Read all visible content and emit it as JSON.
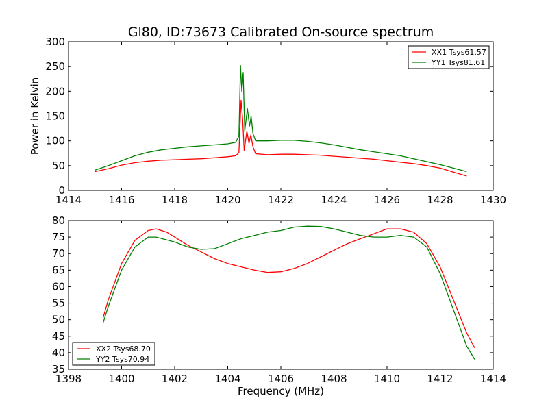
{
  "figure": {
    "title": "Gl80, ID:73673 Calibrated On-source spectrum",
    "xlabel": "Frequency (MHz)"
  },
  "chart_data": [
    {
      "type": "line",
      "title": "Gl80, ID:73673 Calibrated On-source spectrum",
      "xlabel": "",
      "ylabel": "Power in Kelvin",
      "xlim": [
        1414,
        1430
      ],
      "ylim": [
        0,
        300
      ],
      "xticks": [
        1414,
        1416,
        1418,
        1420,
        1422,
        1424,
        1426,
        1428,
        1430
      ],
      "yticks": [
        0,
        50,
        100,
        150,
        200,
        250,
        300
      ],
      "grid": false,
      "legend": "top-right",
      "series": [
        {
          "name": "XX1 Tsys61.57",
          "color": "#ff0000",
          "points": [
            [
              1415.0,
              38
            ],
            [
              1415.5,
              44
            ],
            [
              1416.0,
              51
            ],
            [
              1416.5,
              56
            ],
            [
              1417.0,
              59
            ],
            [
              1417.5,
              61
            ],
            [
              1418.0,
              62
            ],
            [
              1418.5,
              63
            ],
            [
              1419.0,
              64
            ],
            [
              1419.5,
              66
            ],
            [
              1420.0,
              68
            ],
            [
              1420.3,
              70
            ],
            [
              1420.42,
              76
            ],
            [
              1420.5,
              182
            ],
            [
              1420.56,
              145
            ],
            [
              1420.62,
              80
            ],
            [
              1420.72,
              120
            ],
            [
              1420.8,
              95
            ],
            [
              1420.87,
              112
            ],
            [
              1420.95,
              88
            ],
            [
              1421.05,
              74
            ],
            [
              1421.5,
              72
            ],
            [
              1422.0,
              73
            ],
            [
              1422.5,
              73
            ],
            [
              1423.0,
              72
            ],
            [
              1423.5,
              71
            ],
            [
              1424.0,
              69
            ],
            [
              1424.5,
              67
            ],
            [
              1425.0,
              65
            ],
            [
              1425.5,
              63
            ],
            [
              1426.0,
              60
            ],
            [
              1426.5,
              57
            ],
            [
              1427.0,
              54
            ],
            [
              1427.5,
              50
            ],
            [
              1428.0,
              45
            ],
            [
              1428.5,
              37
            ],
            [
              1429.0,
              29
            ]
          ]
        },
        {
          "name": "YY1 Tsys81.61",
          "color": "#008000",
          "points": [
            [
              1415.0,
              41
            ],
            [
              1415.5,
              50
            ],
            [
              1416.0,
              60
            ],
            [
              1416.5,
              70
            ],
            [
              1417.0,
              77
            ],
            [
              1417.5,
              82
            ],
            [
              1418.0,
              85
            ],
            [
              1418.5,
              88
            ],
            [
              1419.0,
              90
            ],
            [
              1419.5,
              92
            ],
            [
              1420.0,
              94
            ],
            [
              1420.3,
              97
            ],
            [
              1420.42,
              110
            ],
            [
              1420.48,
              252
            ],
            [
              1420.53,
              200
            ],
            [
              1420.58,
              238
            ],
            [
              1420.64,
              120
            ],
            [
              1420.74,
              165
            ],
            [
              1420.82,
              130
            ],
            [
              1420.88,
              150
            ],
            [
              1420.95,
              115
            ],
            [
              1421.05,
              100
            ],
            [
              1421.5,
              100
            ],
            [
              1422.0,
              101
            ],
            [
              1422.5,
              101
            ],
            [
              1423.0,
              99
            ],
            [
              1423.5,
              96
            ],
            [
              1424.0,
              92
            ],
            [
              1424.5,
              87
            ],
            [
              1425.0,
              82
            ],
            [
              1425.5,
              78
            ],
            [
              1426.0,
              74
            ],
            [
              1426.5,
              70
            ],
            [
              1427.0,
              64
            ],
            [
              1427.5,
              58
            ],
            [
              1428.0,
              52
            ],
            [
              1428.5,
              45
            ],
            [
              1429.0,
              38
            ]
          ]
        }
      ]
    },
    {
      "type": "line",
      "title": "",
      "xlabel": "Frequency (MHz)",
      "ylabel": "",
      "xlim": [
        1398,
        1414
      ],
      "ylim": [
        35,
        80
      ],
      "xticks": [
        1398,
        1400,
        1402,
        1404,
        1406,
        1408,
        1410,
        1412,
        1414
      ],
      "yticks": [
        35,
        40,
        45,
        50,
        55,
        60,
        65,
        70,
        75,
        80
      ],
      "grid": false,
      "legend": "bottom-left",
      "series": [
        {
          "name": "XX2 Tsys68.70",
          "color": "#ff0000",
          "points": [
            [
              1399.3,
              50.5
            ],
            [
              1399.5,
              56
            ],
            [
              1400.0,
              67
            ],
            [
              1400.5,
              74
            ],
            [
              1401.0,
              77
            ],
            [
              1401.3,
              77.5
            ],
            [
              1401.7,
              76.5
            ],
            [
              1402.0,
              75
            ],
            [
              1402.5,
              72.5
            ],
            [
              1403.0,
              70.5
            ],
            [
              1403.5,
              68.5
            ],
            [
              1404.0,
              67
            ],
            [
              1404.5,
              66
            ],
            [
              1405.0,
              65
            ],
            [
              1405.5,
              64.3
            ],
            [
              1406.0,
              64.5
            ],
            [
              1406.5,
              65.5
            ],
            [
              1407.0,
              67
            ],
            [
              1407.5,
              69
            ],
            [
              1408.0,
              71
            ],
            [
              1408.5,
              73
            ],
            [
              1409.0,
              74.5
            ],
            [
              1409.5,
              76
            ],
            [
              1410.0,
              77.5
            ],
            [
              1410.5,
              77.5
            ],
            [
              1411.0,
              76.5
            ],
            [
              1411.5,
              73
            ],
            [
              1412.0,
              66
            ],
            [
              1412.5,
              56
            ],
            [
              1413.0,
              46
            ],
            [
              1413.3,
              41.5
            ]
          ]
        },
        {
          "name": "YY2 Tsys70.94",
          "color": "#008000",
          "points": [
            [
              1399.3,
              49
            ],
            [
              1399.5,
              54
            ],
            [
              1400.0,
              65
            ],
            [
              1400.5,
              72
            ],
            [
              1401.0,
              75
            ],
            [
              1401.3,
              75
            ],
            [
              1402.0,
              73.5
            ],
            [
              1402.5,
              72
            ],
            [
              1403.0,
              71.3
            ],
            [
              1403.5,
              71.5
            ],
            [
              1404.0,
              73
            ],
            [
              1404.5,
              74.5
            ],
            [
              1405.0,
              75.5
            ],
            [
              1405.5,
              76.5
            ],
            [
              1406.0,
              77
            ],
            [
              1406.5,
              78
            ],
            [
              1407.0,
              78.3
            ],
            [
              1407.5,
              78.2
            ],
            [
              1408.0,
              77.5
            ],
            [
              1408.5,
              76.5
            ],
            [
              1409.0,
              75.5
            ],
            [
              1409.5,
              75
            ],
            [
              1410.0,
              75
            ],
            [
              1410.5,
              75.5
            ],
            [
              1411.0,
              75
            ],
            [
              1411.5,
              72
            ],
            [
              1412.0,
              64
            ],
            [
              1412.5,
              53
            ],
            [
              1413.0,
              42
            ],
            [
              1413.3,
              38
            ]
          ]
        }
      ]
    }
  ]
}
